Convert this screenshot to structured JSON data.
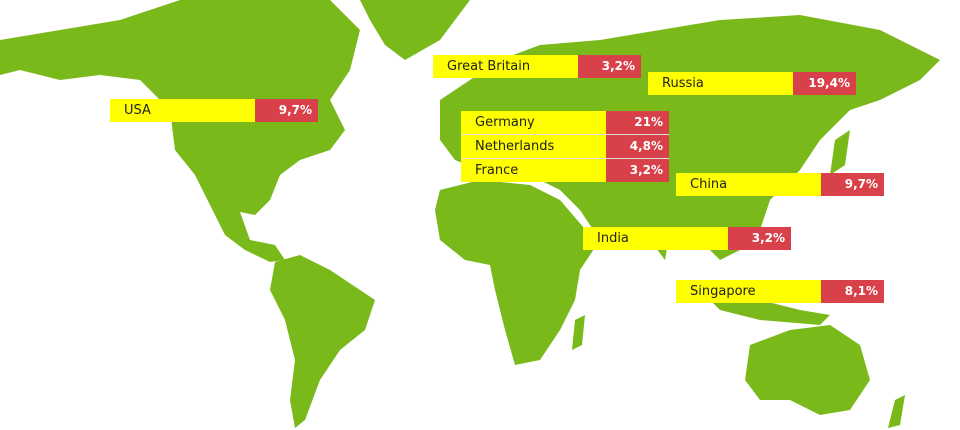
{
  "colors": {
    "land": "#7ab91a",
    "label": "#ffff00",
    "value": "#d9414a"
  },
  "labels": [
    {
      "country": "Great Britain",
      "value": "3,2%"
    },
    {
      "country": "Russia",
      "value": "19,4%"
    },
    {
      "country": "USA",
      "value": "9,7%"
    },
    {
      "country": "China",
      "value": "9,7%"
    },
    {
      "country": "India",
      "value": "3,2%"
    },
    {
      "country": "Singapore",
      "value": "8,1%"
    }
  ],
  "group": [
    {
      "country": "Germany",
      "value": "21%"
    },
    {
      "country": "Netherlands",
      "value": "4,8%"
    },
    {
      "country": "France",
      "value": "3,2%"
    }
  ]
}
